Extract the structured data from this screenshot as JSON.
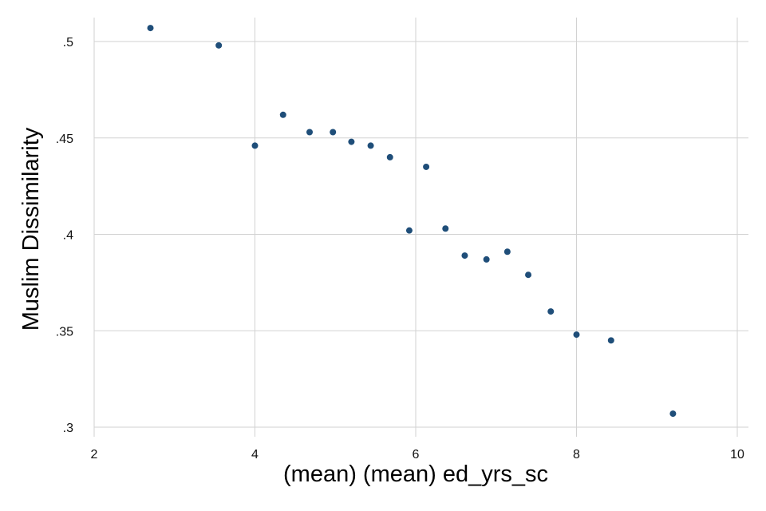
{
  "chart_data": {
    "type": "scatter",
    "title": "",
    "xlabel": "(mean) (mean) ed_yrs_sc",
    "ylabel": "Muslim Dissimilarity",
    "xlim": [
      2,
      10
    ],
    "ylim": [
      0.3,
      0.5
    ],
    "xticks": [
      2,
      4,
      6,
      8,
      10
    ],
    "xtick_labels": [
      "2",
      "4",
      "6",
      "8",
      "10"
    ],
    "yticks": [
      0.3,
      0.35,
      0.4,
      0.45,
      0.5
    ],
    "ytick_labels": [
      ".3",
      ".35",
      ".4",
      ".45",
      ".5"
    ],
    "grid": true,
    "marker_color": "#1f4e79",
    "series": [
      {
        "points": [
          {
            "x": 2.7,
            "y": 0.507
          },
          {
            "x": 3.55,
            "y": 0.498
          },
          {
            "x": 4.0,
            "y": 0.446
          },
          {
            "x": 4.35,
            "y": 0.462
          },
          {
            "x": 4.68,
            "y": 0.453
          },
          {
            "x": 4.97,
            "y": 0.453
          },
          {
            "x": 5.2,
            "y": 0.448
          },
          {
            "x": 5.44,
            "y": 0.446
          },
          {
            "x": 5.68,
            "y": 0.44
          },
          {
            "x": 5.92,
            "y": 0.402
          },
          {
            "x": 6.13,
            "y": 0.435
          },
          {
            "x": 6.37,
            "y": 0.403
          },
          {
            "x": 6.61,
            "y": 0.389
          },
          {
            "x": 6.88,
            "y": 0.387
          },
          {
            "x": 7.14,
            "y": 0.391
          },
          {
            "x": 7.4,
            "y": 0.379
          },
          {
            "x": 7.68,
            "y": 0.36
          },
          {
            "x": 8.0,
            "y": 0.348
          },
          {
            "x": 8.43,
            "y": 0.345
          },
          {
            "x": 9.2,
            "y": 0.307
          }
        ]
      }
    ]
  }
}
